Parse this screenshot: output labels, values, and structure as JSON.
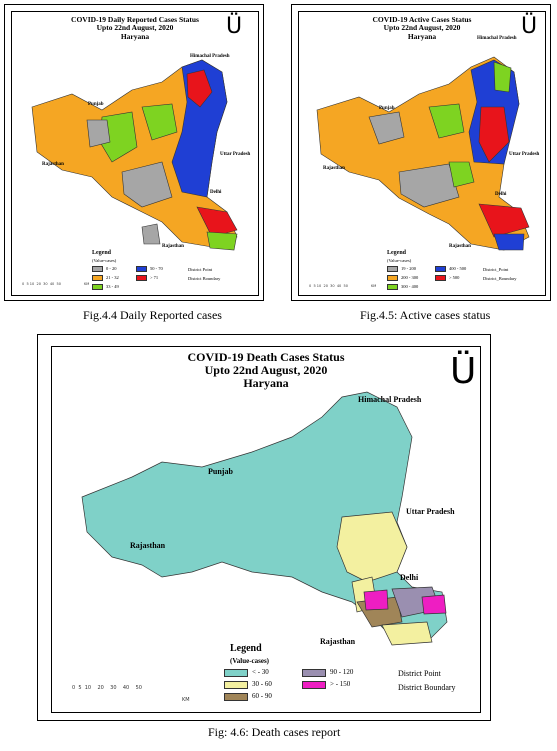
{
  "maps": [
    {
      "title": "COVID-19 Daily Reported Cases Status\nUpto 22nd August, 2020\nHaryana",
      "north_symbol": "Ü",
      "labels": {
        "himachal": "Himachal Pradesh",
        "punjab": "Punjab",
        "uttar": "Uttar Pradesh",
        "rajasthan": "Rajasthan",
        "delhi": "Delhi",
        "rajasthan2": "Rajasthan"
      },
      "legend": {
        "title": "Legend",
        "subtitle": "(Value-cases)",
        "classes": [
          {
            "label": "0 - 20",
            "color": "#a6a6a6"
          },
          {
            "label": "21 - 32",
            "color": "#f5a623"
          },
          {
            "label": "33 - 49",
            "color": "#7ed321"
          },
          {
            "label": "50 - 70",
            "color": "#1f3fd4"
          },
          {
            "label": "> 71",
            "color": "#e8141b"
          }
        ],
        "point": "District Point",
        "boundary": "District Boundary"
      },
      "scale": "0  5 10  20  30  40  50",
      "scale_unit": "KM",
      "caption": "Fig.4.4 Daily Reported cases"
    },
    {
      "title": "COVID-19 Active Cases Status\nUpto 22nd August, 2020\nHaryana",
      "north_symbol": "Ü",
      "labels": {
        "himachal": "Himachal Pradesh",
        "punjab": "Punjab",
        "uttar": "Uttar Pradesh",
        "rajasthan": "Rajasthan",
        "delhi": "Delhi",
        "rajasthan2": "Rajasthan"
      },
      "legend": {
        "title": "Legend",
        "subtitle": "(Value-cases)",
        "classes": [
          {
            "label": "19 - 200",
            "color": "#a6a6a6"
          },
          {
            "label": "200 - 300",
            "color": "#f5a623"
          },
          {
            "label": "300 - 400",
            "color": "#7ed321"
          },
          {
            "label": "400 - 500",
            "color": "#1f3fd4"
          },
          {
            "label": "> 500",
            "color": "#e8141b"
          }
        ],
        "point": "District_Point",
        "boundary": "District_Boundary"
      },
      "scale": "0  5 10  20  30  40  50",
      "scale_unit": "KM",
      "caption": "Fig.4.5: Active cases status"
    },
    {
      "title": "COVID-19 Death Cases Status\nUpto 22nd August, 2020\nHaryana",
      "north_symbol": "Ü",
      "labels": {
        "himachal": "Himachal Pradesh",
        "punjab": "Punjab",
        "uttar": "Uttar Pradesh",
        "rajasthan": "Rajasthan",
        "delhi": "Delhi",
        "rajasthan2": "Rajasthan"
      },
      "legend": {
        "title": "Legend",
        "subtitle": "(Value-cases)",
        "classes": [
          {
            "label": "< - 30",
            "color": "#7fd1c8"
          },
          {
            "label": "30 - 60",
            "color": "#f3f0a0"
          },
          {
            "label": "60 - 90",
            "color": "#a08558"
          },
          {
            "label": "90 - 120",
            "color": "#9a8fb0"
          },
          {
            "label": "> - 150",
            "color": "#ee1ec2"
          }
        ],
        "point": "District Point",
        "boundary": "District Boundary"
      },
      "scale": "0  5  10    20    30    40    50",
      "scale_unit": "KM",
      "caption": "Fig: 4.6: Death cases report"
    }
  ]
}
